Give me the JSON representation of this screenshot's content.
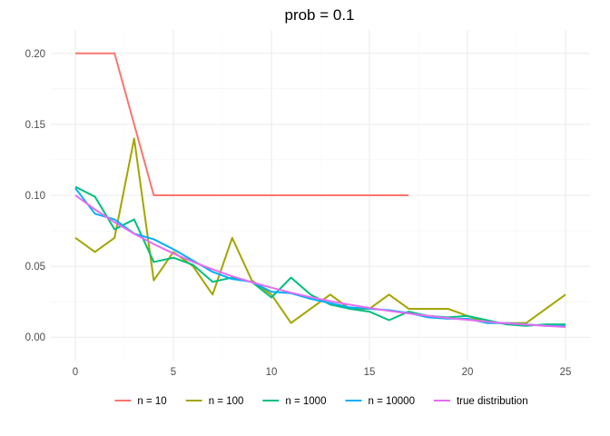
{
  "chart_data": {
    "type": "line",
    "title": "prob = 0.1",
    "xlabel": "",
    "ylabel": "",
    "xlim": [
      -1.25,
      26.25
    ],
    "ylim": [
      -0.0165,
      0.2165
    ],
    "x_ticks": [
      0,
      5,
      10,
      15,
      20,
      25
    ],
    "x_tick_labels": [
      "0",
      "5",
      "10",
      "15",
      "20",
      "25"
    ],
    "y_ticks": [
      0.0,
      0.05,
      0.1,
      0.15,
      0.2
    ],
    "y_tick_labels": [
      "0.00",
      "0.05",
      "0.10",
      "0.15",
      "0.20"
    ],
    "grid": true,
    "legend_position": "bottom",
    "series": [
      {
        "name": "n =  10",
        "color": "#F8766D",
        "x": [
          0,
          1,
          2,
          3,
          4,
          5,
          6,
          7,
          8,
          9,
          10,
          11,
          12,
          13,
          14,
          15,
          16,
          17
        ],
        "values": [
          0.2,
          0.2,
          0.2,
          0.15,
          0.1,
          0.1,
          0.1,
          0.1,
          0.1,
          0.1,
          0.1,
          0.1,
          0.1,
          0.1,
          0.1,
          0.1,
          0.1,
          0.1
        ]
      },
      {
        "name": "n =  100",
        "color": "#A3A500",
        "x": [
          0,
          1,
          2,
          3,
          4,
          5,
          6,
          7,
          8,
          9,
          10,
          11,
          12,
          13,
          14,
          15,
          16,
          17,
          18,
          19,
          20,
          21,
          22,
          23,
          24,
          25
        ],
        "values": [
          0.07,
          0.06,
          0.07,
          0.14,
          0.04,
          0.06,
          0.05,
          0.03,
          0.07,
          0.04,
          0.03,
          0.01,
          0.02,
          0.03,
          0.02,
          0.02,
          0.03,
          0.02,
          0.02,
          0.02,
          0.015,
          0.01,
          0.01,
          0.01,
          0.02,
          0.03
        ]
      },
      {
        "name": "n =  1000",
        "color": "#00BF7D",
        "x": [
          0,
          1,
          2,
          3,
          4,
          5,
          6,
          7,
          8,
          9,
          10,
          11,
          12,
          13,
          14,
          15,
          16,
          17,
          18,
          19,
          20,
          21,
          22,
          23,
          24,
          25
        ],
        "values": [
          0.106,
          0.099,
          0.076,
          0.083,
          0.053,
          0.056,
          0.051,
          0.039,
          0.042,
          0.039,
          0.028,
          0.042,
          0.03,
          0.023,
          0.02,
          0.018,
          0.012,
          0.018,
          0.015,
          0.014,
          0.015,
          0.012,
          0.009,
          0.008,
          0.009,
          0.009
        ]
      },
      {
        "name": "n =  10000",
        "color": "#00B0F6",
        "x": [
          0,
          1,
          2,
          3,
          4,
          5,
          6,
          7,
          8,
          9,
          10,
          11,
          12,
          13,
          14,
          15,
          16,
          17,
          18,
          19,
          20,
          21,
          22,
          23,
          24,
          25
        ],
        "values": [
          0.105,
          0.087,
          0.083,
          0.073,
          0.069,
          0.062,
          0.054,
          0.046,
          0.041,
          0.039,
          0.032,
          0.031,
          0.027,
          0.024,
          0.021,
          0.02,
          0.019,
          0.017,
          0.014,
          0.013,
          0.013,
          0.01,
          0.01,
          0.009,
          0.008,
          0.008
        ]
      },
      {
        "name": "true distribution",
        "color": "#E76BF3",
        "x": [
          0,
          1,
          2,
          3,
          4,
          5,
          6,
          7,
          8,
          9,
          10,
          11,
          12,
          13,
          14,
          15,
          16,
          17,
          18,
          19,
          20,
          21,
          22,
          23,
          24,
          25
        ],
        "values": [
          0.1,
          0.09,
          0.081,
          0.0729,
          0.0656,
          0.059,
          0.0531,
          0.0478,
          0.043,
          0.0387,
          0.0349,
          0.0314,
          0.0282,
          0.0254,
          0.0229,
          0.0206,
          0.0185,
          0.0167,
          0.015,
          0.0135,
          0.0122,
          0.0109,
          0.0098,
          0.0089,
          0.008,
          0.0072
        ]
      }
    ]
  }
}
